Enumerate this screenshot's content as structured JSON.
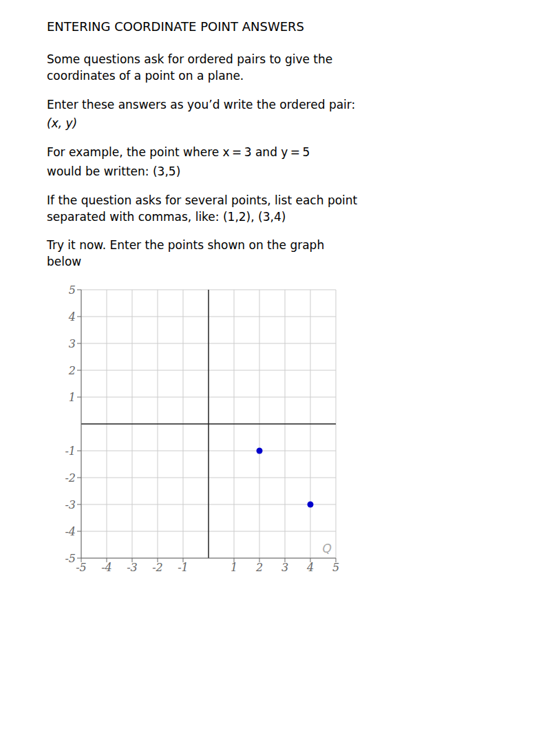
{
  "chart_data": {
    "type": "scatter",
    "title": "ENTERING COORDINATE POINT ANSWERS",
    "annotations": [
      "Some questions ask for ordered pairs to give the\ncoordinates of a point on a plane.",
      "Enter these answers as you’d write the ordered pair:",
      "(x, y)",
      "For example, the point where x = 3 and y = 5",
      "would be written: (3,5)",
      "If the question asks for several points, list each point\nseparated with commas, like: (1,2), (3,4)",
      "Try it now. Enter the points shown on the graph\nbelow",
      "Q"
    ],
    "x": [
      2,
      4
    ],
    "values": [
      -1,
      -3
    ],
    "color": "#0000CC",
    "xlim": [
      -5,
      5
    ],
    "ylim": [
      -5,
      5
    ],
    "xticks": [
      -5,
      -4,
      -3,
      -2,
      -1,
      1,
      2,
      3,
      4,
      5
    ],
    "yticks": [
      -5,
      -4,
      -3,
      -2,
      -1,
      1,
      2,
      3,
      4,
      5
    ],
    "grid": true
  }
}
